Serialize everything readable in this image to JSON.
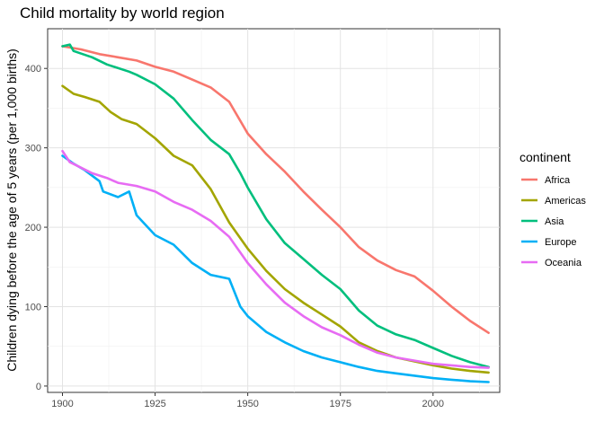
{
  "chart_data": {
    "type": "line",
    "title": "Child mortality by world region",
    "xlabel": "",
    "ylabel": "Children dying before the age of 5 years (per 1,000 births)",
    "xlim": [
      1896,
      2018
    ],
    "ylim": [
      -8,
      450
    ],
    "xticks": [
      1900,
      1925,
      1950,
      1975,
      2000
    ],
    "yticks": [
      0,
      100,
      200,
      300,
      400
    ],
    "grid": true,
    "legend_title": "continent",
    "legend_position": "right",
    "series": [
      {
        "name": "Africa",
        "color": "#F8766D",
        "points": [
          [
            1900,
            428
          ],
          [
            1905,
            424
          ],
          [
            1910,
            418
          ],
          [
            1915,
            414
          ],
          [
            1920,
            410
          ],
          [
            1925,
            402
          ],
          [
            1930,
            396
          ],
          [
            1935,
            386
          ],
          [
            1940,
            376
          ],
          [
            1945,
            358
          ],
          [
            1950,
            318
          ],
          [
            1955,
            292
          ],
          [
            1960,
            270
          ],
          [
            1965,
            245
          ],
          [
            1970,
            222
          ],
          [
            1975,
            200
          ],
          [
            1980,
            175
          ],
          [
            1985,
            158
          ],
          [
            1990,
            146
          ],
          [
            1995,
            138
          ],
          [
            2000,
            120
          ],
          [
            2005,
            100
          ],
          [
            2010,
            82
          ],
          [
            2015,
            67
          ]
        ]
      },
      {
        "name": "Americas",
        "color": "#A3A500",
        "points": [
          [
            1900,
            378
          ],
          [
            1903,
            368
          ],
          [
            1906,
            364
          ],
          [
            1910,
            358
          ],
          [
            1913,
            345
          ],
          [
            1916,
            336
          ],
          [
            1920,
            330
          ],
          [
            1925,
            312
          ],
          [
            1930,
            290
          ],
          [
            1935,
            278
          ],
          [
            1940,
            248
          ],
          [
            1945,
            206
          ],
          [
            1950,
            173
          ],
          [
            1955,
            145
          ],
          [
            1960,
            122
          ],
          [
            1965,
            105
          ],
          [
            1970,
            90
          ],
          [
            1975,
            75
          ],
          [
            1980,
            55
          ],
          [
            1985,
            44
          ],
          [
            1990,
            36
          ],
          [
            1995,
            31
          ],
          [
            2000,
            26
          ],
          [
            2005,
            22
          ],
          [
            2010,
            19
          ],
          [
            2015,
            17
          ]
        ]
      },
      {
        "name": "Asia",
        "color": "#00BF7D",
        "points": [
          [
            1900,
            428
          ],
          [
            1902,
            430
          ],
          [
            1903,
            422
          ],
          [
            1908,
            414
          ],
          [
            1912,
            405
          ],
          [
            1918,
            396
          ],
          [
            1920,
            392
          ],
          [
            1925,
            380
          ],
          [
            1930,
            362
          ],
          [
            1935,
            335
          ],
          [
            1940,
            310
          ],
          [
            1945,
            292
          ],
          [
            1948,
            268
          ],
          [
            1950,
            250
          ],
          [
            1955,
            210
          ],
          [
            1960,
            180
          ],
          [
            1965,
            160
          ],
          [
            1970,
            140
          ],
          [
            1975,
            122
          ],
          [
            1980,
            95
          ],
          [
            1985,
            76
          ],
          [
            1990,
            65
          ],
          [
            1995,
            58
          ],
          [
            2000,
            48
          ],
          [
            2005,
            38
          ],
          [
            2010,
            30
          ],
          [
            2015,
            24
          ]
        ]
      },
      {
        "name": "Europe",
        "color": "#00B0F6",
        "points": [
          [
            1900,
            290
          ],
          [
            1903,
            280
          ],
          [
            1906,
            272
          ],
          [
            1910,
            258
          ],
          [
            1911,
            245
          ],
          [
            1915,
            238
          ],
          [
            1918,
            245
          ],
          [
            1920,
            215
          ],
          [
            1925,
            190
          ],
          [
            1930,
            178
          ],
          [
            1935,
            155
          ],
          [
            1940,
            140
          ],
          [
            1945,
            135
          ],
          [
            1948,
            100
          ],
          [
            1950,
            88
          ],
          [
            1955,
            68
          ],
          [
            1960,
            55
          ],
          [
            1965,
            44
          ],
          [
            1970,
            36
          ],
          [
            1975,
            30
          ],
          [
            1980,
            24
          ],
          [
            1985,
            19
          ],
          [
            1990,
            16
          ],
          [
            1995,
            13
          ],
          [
            2000,
            10
          ],
          [
            2005,
            8
          ],
          [
            2010,
            6
          ],
          [
            2015,
            5
          ]
        ]
      },
      {
        "name": "Oceania",
        "color": "#E76BF3",
        "points": [
          [
            1900,
            296
          ],
          [
            1902,
            282
          ],
          [
            1905,
            275
          ],
          [
            1908,
            268
          ],
          [
            1912,
            262
          ],
          [
            1915,
            256
          ],
          [
            1920,
            252
          ],
          [
            1925,
            245
          ],
          [
            1930,
            232
          ],
          [
            1935,
            222
          ],
          [
            1940,
            208
          ],
          [
            1945,
            188
          ],
          [
            1950,
            155
          ],
          [
            1955,
            128
          ],
          [
            1960,
            105
          ],
          [
            1965,
            88
          ],
          [
            1970,
            74
          ],
          [
            1975,
            64
          ],
          [
            1980,
            52
          ],
          [
            1985,
            42
          ],
          [
            1990,
            36
          ],
          [
            1995,
            32
          ],
          [
            2000,
            28
          ],
          [
            2005,
            26
          ],
          [
            2010,
            24
          ],
          [
            2015,
            23
          ]
        ]
      }
    ]
  }
}
